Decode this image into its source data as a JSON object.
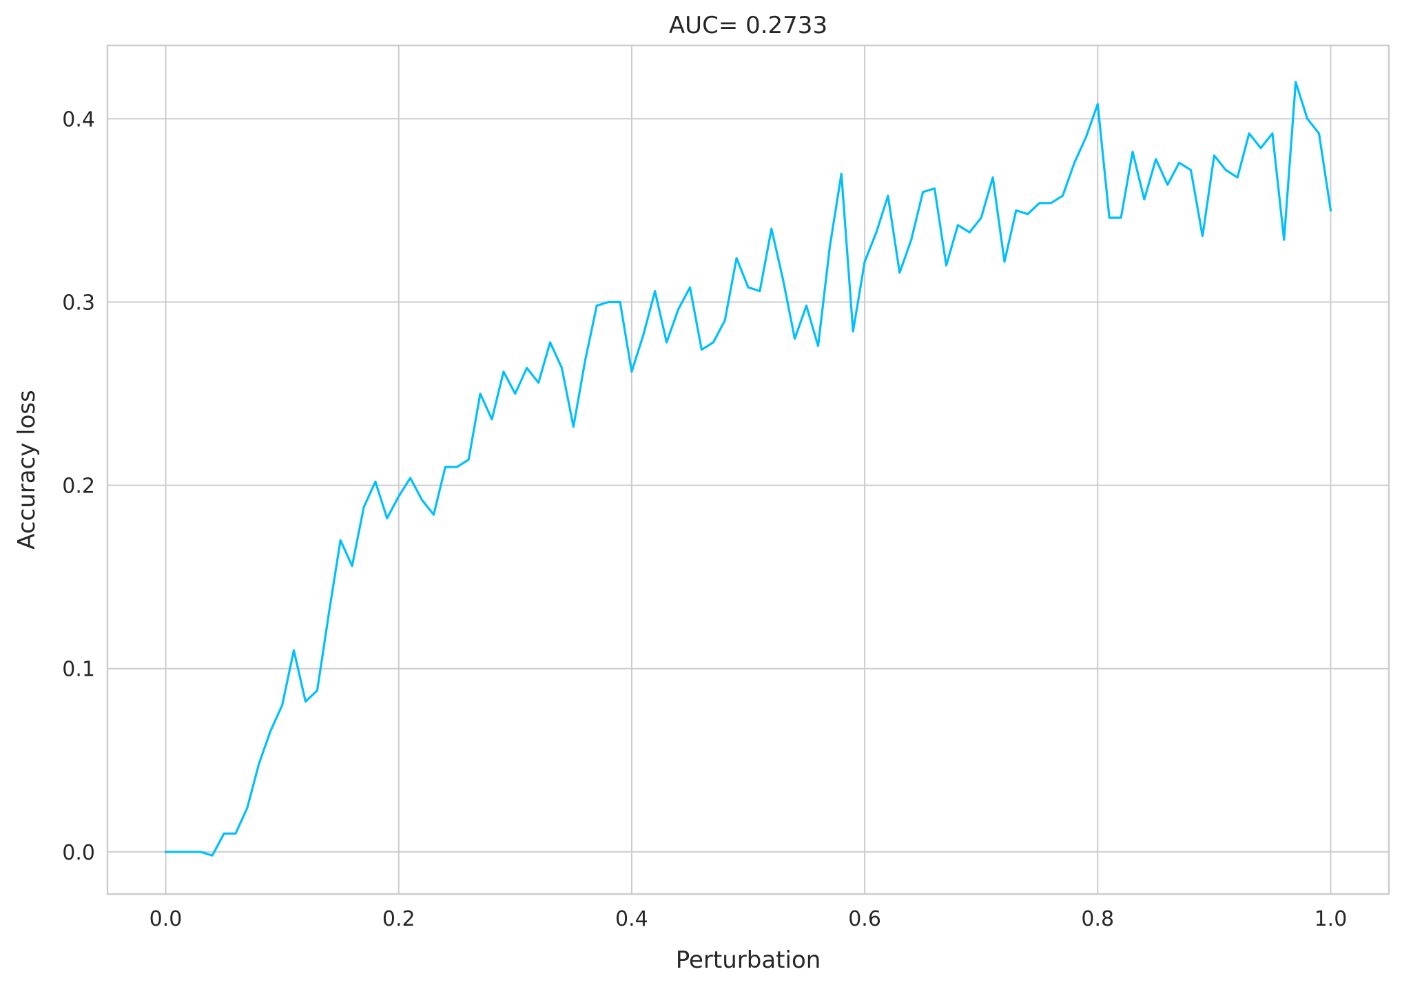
{
  "chart_data": {
    "type": "line",
    "title": "AUC= 0.2733",
    "xlabel": "Perturbation",
    "ylabel": "Accuracy loss",
    "xlim": [
      -0.05,
      1.05
    ],
    "ylim": [
      -0.023,
      0.44
    ],
    "xticks": [
      0.0,
      0.2,
      0.4,
      0.6,
      0.8,
      1.0
    ],
    "xtick_labels": [
      "0.0",
      "0.2",
      "0.4",
      "0.6",
      "0.8",
      "1.0"
    ],
    "yticks": [
      0.0,
      0.1,
      0.2,
      0.3,
      0.4
    ],
    "ytick_labels": [
      "0.0",
      "0.1",
      "0.2",
      "0.3",
      "0.4"
    ],
    "grid": true,
    "line_color": "#00bfff",
    "series": [
      {
        "x": [
          0.0,
          0.01,
          0.02,
          0.03,
          0.04,
          0.05,
          0.06,
          0.07,
          0.08,
          0.09,
          0.1,
          0.11,
          0.12,
          0.13,
          0.14,
          0.15,
          0.16,
          0.17,
          0.18,
          0.19,
          0.2,
          0.21,
          0.22,
          0.23,
          0.24,
          0.25,
          0.26,
          0.27,
          0.28,
          0.29,
          0.3,
          0.31,
          0.32,
          0.33,
          0.34,
          0.35,
          0.36,
          0.37,
          0.38,
          0.39,
          0.4,
          0.41,
          0.42,
          0.43,
          0.44,
          0.45,
          0.46,
          0.47,
          0.48,
          0.49,
          0.5,
          0.51,
          0.52,
          0.53,
          0.54,
          0.55,
          0.56,
          0.57,
          0.58,
          0.59,
          0.6,
          0.61,
          0.62,
          0.63,
          0.64,
          0.65,
          0.66,
          0.67,
          0.68,
          0.69,
          0.7,
          0.71,
          0.72,
          0.73,
          0.74,
          0.75,
          0.76,
          0.77,
          0.78,
          0.79,
          0.8,
          0.81,
          0.82,
          0.83,
          0.84,
          0.85,
          0.86,
          0.87,
          0.88,
          0.89,
          0.9,
          0.91,
          0.92,
          0.93,
          0.94,
          0.95,
          0.96,
          0.97,
          0.98,
          0.99,
          1.0
        ],
        "y": [
          0.0,
          0.0,
          0.0,
          0.0,
          -0.002,
          0.01,
          0.01,
          0.024,
          0.048,
          0.066,
          0.08,
          0.11,
          0.082,
          0.088,
          0.13,
          0.17,
          0.156,
          0.188,
          0.202,
          0.182,
          0.194,
          0.204,
          0.192,
          0.184,
          0.21,
          0.21,
          0.214,
          0.25,
          0.236,
          0.262,
          0.25,
          0.264,
          0.256,
          0.278,
          0.264,
          0.232,
          0.268,
          0.298,
          0.3,
          0.3,
          0.262,
          0.282,
          0.306,
          0.278,
          0.296,
          0.308,
          0.274,
          0.278,
          0.29,
          0.324,
          0.308,
          0.306,
          0.34,
          0.312,
          0.28,
          0.298,
          0.276,
          0.33,
          0.37,
          0.284,
          0.322,
          0.338,
          0.358,
          0.316,
          0.334,
          0.36,
          0.362,
          0.32,
          0.342,
          0.338,
          0.346,
          0.368,
          0.322,
          0.35,
          0.348,
          0.354,
          0.354,
          0.358,
          0.376,
          0.39,
          0.408,
          0.346,
          0.346,
          0.382,
          0.356,
          0.378,
          0.364,
          0.376,
          0.372,
          0.336,
          0.38,
          0.372,
          0.368,
          0.392,
          0.384,
          0.392,
          0.334,
          0.42,
          0.4,
          0.392,
          0.35
        ]
      }
    ]
  }
}
